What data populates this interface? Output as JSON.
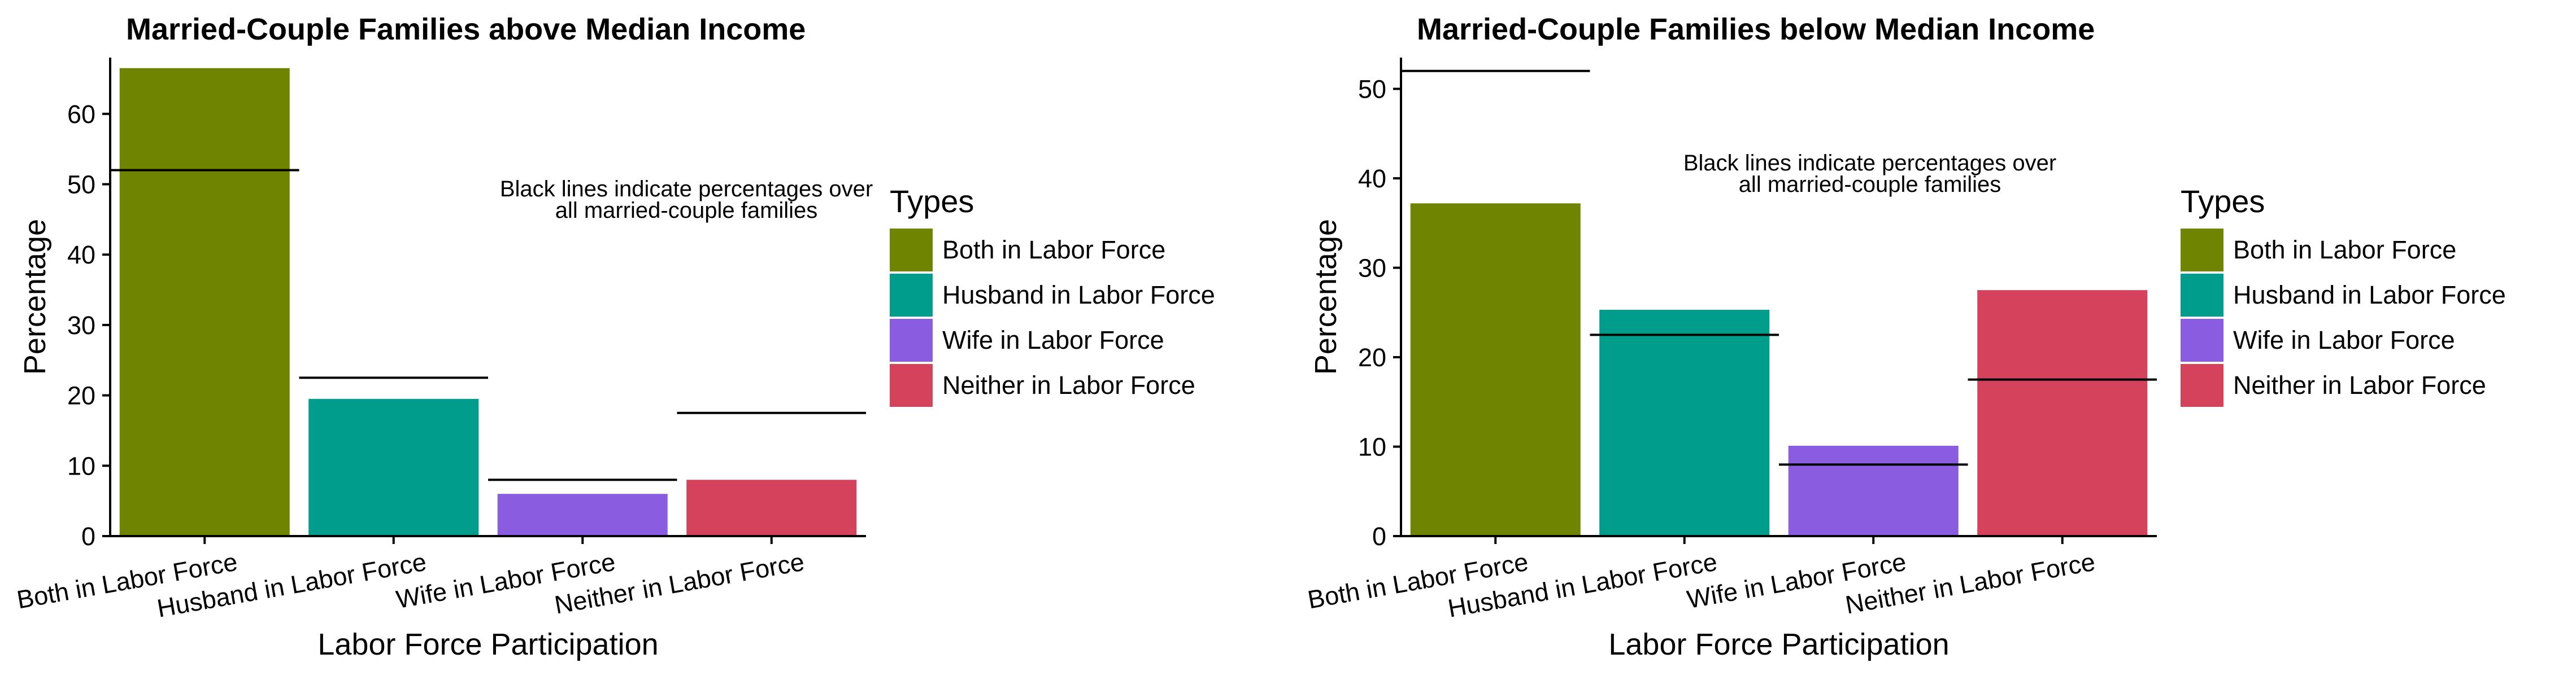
{
  "chart_data": [
    {
      "type": "bar",
      "title": "Married-Couple Families above Median Income",
      "xlabel": "Labor Force Participation",
      "ylabel": "Percentage",
      "ylim": [
        0,
        68
      ],
      "yticks": [
        0,
        10,
        20,
        30,
        40,
        50,
        60
      ],
      "categories": [
        "Both in Labor Force",
        "Husband in Labor Force",
        "Wife in Labor Force",
        "Neither in Labor Force"
      ],
      "values": [
        66.5,
        19.5,
        6,
        8
      ],
      "reference_values": [
        52,
        22.5,
        8,
        17.5
      ],
      "colors": [
        "#6f8400",
        "#009c8c",
        "#8a5ce0",
        "#d4425c"
      ],
      "annotation": [
        "Black lines indicate percentages over",
        "all married-couple families"
      ],
      "legend": {
        "title": "Types",
        "placement": "right",
        "entries": [
          "Both in Labor Force",
          "Husband in Labor Force",
          "Wife in Labor Force",
          "Neither in Labor Force"
        ]
      },
      "grid": false
    },
    {
      "type": "bar",
      "title": "Married-Couple Families below Median Income",
      "xlabel": "Labor Force Participation",
      "ylabel": "Percentage",
      "ylim": [
        0,
        53.5
      ],
      "yticks": [
        0,
        10,
        20,
        30,
        40,
        50
      ],
      "categories": [
        "Both in Labor Force",
        "Husband in Labor Force",
        "Wife in Labor Force",
        "Neither in Labor Force"
      ],
      "values": [
        37.2,
        25.3,
        10.1,
        27.5
      ],
      "reference_values": [
        52,
        22.5,
        8,
        17.5
      ],
      "colors": [
        "#6f8400",
        "#009c8c",
        "#8a5ce0",
        "#d4425c"
      ],
      "annotation": [
        "Black lines indicate percentages over",
        "all married-couple families"
      ],
      "legend": {
        "title": "Types",
        "placement": "right",
        "entries": [
          "Both in Labor Force",
          "Husband in Labor Force",
          "Wife in Labor Force",
          "Neither in Labor Force"
        ]
      },
      "grid": false
    }
  ]
}
